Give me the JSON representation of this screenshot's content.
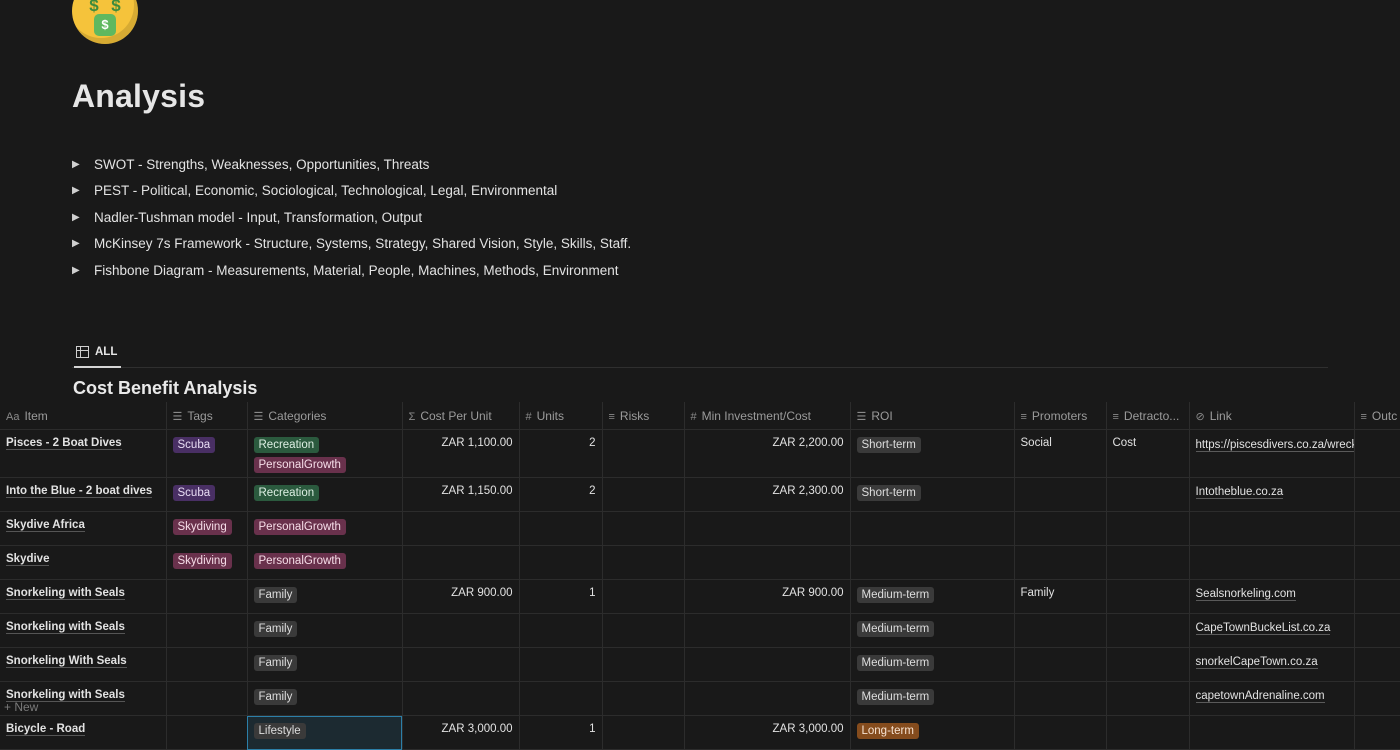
{
  "page": {
    "icon": "money-mouth-face-emoji",
    "title": "Analysis"
  },
  "toggles": [
    {
      "label": "SWOT - Strengths, Weaknesses, Opportunities, Threats"
    },
    {
      "label": "PEST - Political, Economic, Sociological, Technological, Legal, Environmental"
    },
    {
      "label": "Nadler-Tushman model - Input, Transformation, Output"
    },
    {
      "label": "McKinsey 7s Framework - Structure, Systems, Strategy, Shared Vision, Style, Skills, Staff."
    },
    {
      "label": "Fishbone Diagram -  Measurements, Material, People, Machines, Methods, Environment"
    }
  ],
  "view_tab": {
    "label": "ALL",
    "icon": "table-icon"
  },
  "database": {
    "title": "Cost Benefit Analysis",
    "columns": [
      {
        "label": "Item",
        "icon": "Aa"
      },
      {
        "label": "Tags",
        "icon": "☰"
      },
      {
        "label": "Categories",
        "icon": "☰"
      },
      {
        "label": "Cost Per Unit",
        "icon": "Σ"
      },
      {
        "label": "Units",
        "icon": "#"
      },
      {
        "label": "Risks",
        "icon": "≡"
      },
      {
        "label": "Min Investment/Cost",
        "icon": "#"
      },
      {
        "label": "ROI",
        "icon": "☰"
      },
      {
        "label": "Promoters",
        "icon": "≡"
      },
      {
        "label": "Detracto...",
        "icon": "≡"
      },
      {
        "label": "Link",
        "icon": "⊘"
      },
      {
        "label": "Outc",
        "icon": "≡"
      }
    ],
    "rows": [
      {
        "item": "Pisces - 2 Boat Dives",
        "tags": "Scuba",
        "categories": [
          "Recreation",
          "PersonalGrowth"
        ],
        "cost": "ZAR 1,100.00",
        "units": "2",
        "risks": "",
        "min_investment": "ZAR 2,200.00",
        "roi": "Short-term",
        "promoters": "Social",
        "detractors": "Cost",
        "link": "https://piscesdivers.co.za/wreck-and-reef/"
      },
      {
        "item": "Into the Blue - 2 boat dives",
        "tags": "Scuba",
        "categories": [
          "Recreation"
        ],
        "cost": "ZAR 1,150.00",
        "units": "2",
        "risks": "",
        "min_investment": "ZAR 2,300.00",
        "roi": "Short-term",
        "promoters": "",
        "detractors": "",
        "link": "Intotheblue.co.za"
      },
      {
        "item": "Skydive Africa",
        "tags": "Skydiving",
        "categories": [
          "PersonalGrowth"
        ],
        "cost": "",
        "units": "",
        "risks": "",
        "min_investment": "",
        "roi": "",
        "promoters": "",
        "detractors": "",
        "link": ""
      },
      {
        "item": "Skydive",
        "tags": "Skydiving",
        "categories": [
          "PersonalGrowth"
        ],
        "cost": "",
        "units": "",
        "risks": "",
        "min_investment": "",
        "roi": "",
        "promoters": "",
        "detractors": "",
        "link": ""
      },
      {
        "item": "Snorkeling with Seals",
        "tags": "",
        "categories": [
          "Family"
        ],
        "cost": "ZAR 900.00",
        "units": "1",
        "risks": "",
        "min_investment": "ZAR 900.00",
        "roi": "Medium-term",
        "promoters": "Family",
        "detractors": "",
        "link": "Sealsnorkeling.com"
      },
      {
        "item": "Snorkeling with Seals",
        "tags": "",
        "categories": [
          "Family"
        ],
        "cost": "",
        "units": "",
        "risks": "",
        "min_investment": "",
        "roi": "Medium-term",
        "promoters": "",
        "detractors": "",
        "link": "CapeTownBuckeList.co.za"
      },
      {
        "item": "Snorkeling With Seals",
        "tags": "",
        "categories": [
          "Family"
        ],
        "cost": "",
        "units": "",
        "risks": "",
        "min_investment": "",
        "roi": "Medium-term",
        "promoters": "",
        "detractors": "",
        "link": "snorkelCapeTown.co.za"
      },
      {
        "item": "Snorkeling with Seals",
        "tags": "",
        "categories": [
          "Family"
        ],
        "cost": "",
        "units": "",
        "risks": "",
        "min_investment": "",
        "roi": "Medium-term",
        "promoters": "",
        "detractors": "",
        "link": "capetownAdrenaline.com"
      },
      {
        "item": "Bicycle - Road",
        "tags": "",
        "categories": [
          "Lifestyle"
        ],
        "cost": "ZAR 3,000.00",
        "units": "1",
        "risks": "",
        "min_investment": "ZAR 3,000.00",
        "roi": "Long-term",
        "promoters": "",
        "detractors": "",
        "link": ""
      }
    ],
    "tag_colors": {
      "Scuba": "#492f64",
      "Skydiving": "#69314c",
      "Recreation": "#2b5a3e",
      "PersonalGrowth": "#69314c",
      "Family": "#3a3a3a",
      "Lifestyle": "#3a3a3a",
      "Short-term": "#3a3a3a",
      "Medium-term": "#3a3a3a",
      "Long-term": "#854c1d"
    },
    "new_row_label": "+ New"
  }
}
